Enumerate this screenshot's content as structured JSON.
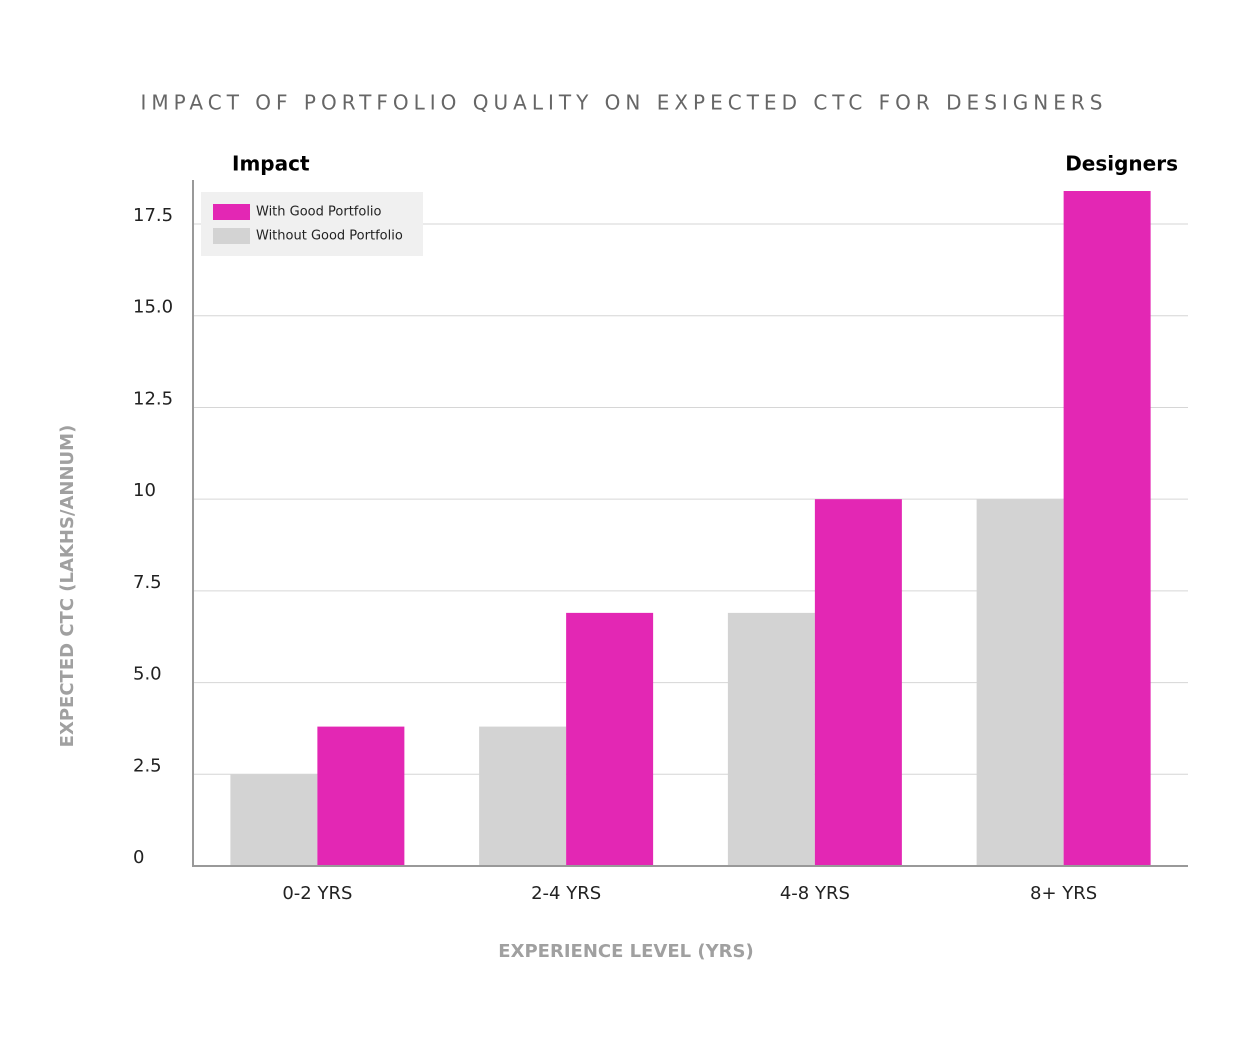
{
  "chart_data": {
    "type": "bar",
    "title": "IMPACT OF PORTFOLIO QUALITY ON EXPECTED CTC FOR DESIGNERS",
    "annotations": [
      "Impact",
      "Designers"
    ],
    "x_label": "EXPERIENCE LEVEL (YRS)",
    "y_label": "EXPECTED CTC (LAKHS/ANNUM)",
    "categories": [
      "0-2 YRS",
      "2-4 YRS",
      "4-8 YRS",
      "8+ YRS"
    ],
    "series": [
      {
        "name": "Without Good Portfolio",
        "color": "#d3d3d3",
        "values": [
          2.5,
          3.8,
          6.9,
          10
        ]
      },
      {
        "name": "With Good Portfolio",
        "color": "#e327b4",
        "values": [
          3.8,
          6.9,
          10,
          18.4
        ]
      }
    ],
    "legend_order": [
      1,
      0
    ],
    "ylim": [
      0,
      18.7
    ],
    "yticks": [
      0,
      2.5,
      {
        "value": 5,
        "label": "5.0"
      },
      7.5,
      10,
      12.5,
      {
        "value": 15,
        "label": "15.0"
      },
      17.5
    ],
    "grid": true,
    "legend_position": "upper-left"
  }
}
